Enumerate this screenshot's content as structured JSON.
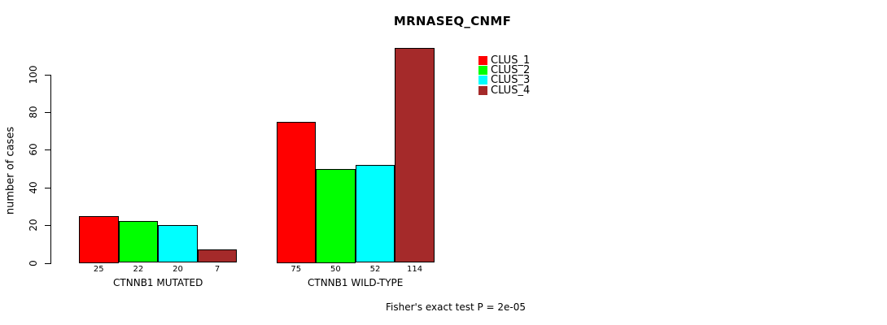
{
  "chart_data": {
    "type": "bar",
    "title": "MRNASEQ_CNMF",
    "xlabel": "",
    "ylabel": "number of cases",
    "categories": [
      "CTNNB1 MUTATED",
      "CTNNB1 WILD-TYPE"
    ],
    "series": [
      {
        "name": "CLUS_1",
        "color": "#ff0000",
        "values": [
          25,
          75
        ]
      },
      {
        "name": "CLUS_2",
        "color": "#00ff00",
        "values": [
          22,
          50
        ]
      },
      {
        "name": "CLUS_3",
        "color": "#00ffff",
        "values": [
          20,
          52
        ]
      },
      {
        "name": "CLUS_4",
        "color": "#a52a2a",
        "values": [
          7,
          114
        ]
      }
    ],
    "yticks": [
      0,
      20,
      40,
      60,
      80,
      100
    ],
    "ylim": [
      0,
      116
    ],
    "show_bar_values": true,
    "grid": false,
    "legend_position": "inside-top-right",
    "annotation": "Fisher's exact test P = 2e-05"
  }
}
